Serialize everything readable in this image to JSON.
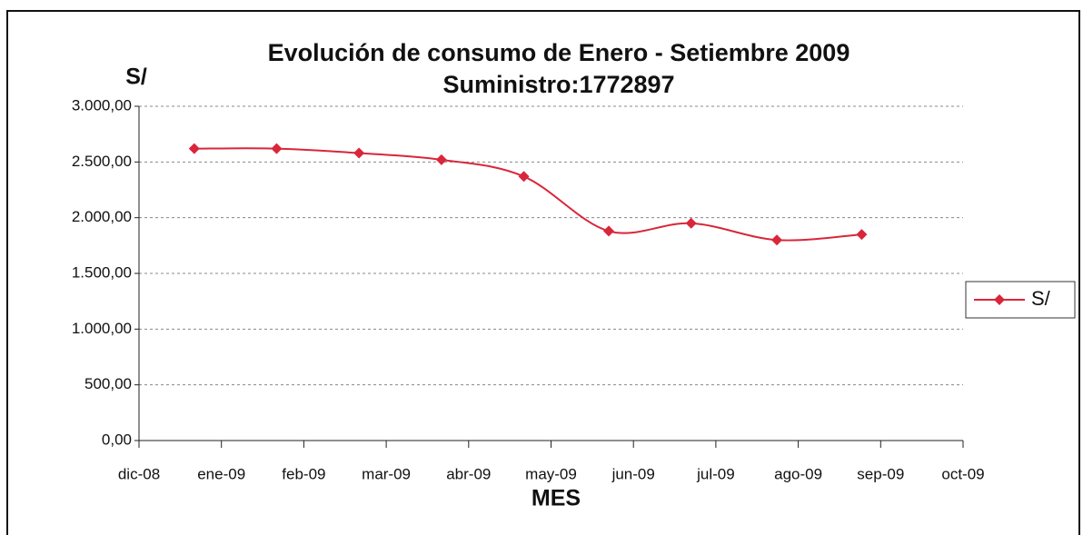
{
  "chart_data": {
    "type": "line",
    "title": "Evolución de consumo de Enero - Setiembre 2009",
    "subtitle": "Suministro:1772897",
    "y_label": "S/",
    "x_label": "MES",
    "x": [
      0.67,
      1.67,
      2.67,
      3.67,
      4.67,
      5.7,
      6.7,
      7.74,
      8.77
    ],
    "series": [
      {
        "name": "S/",
        "color": "#d9263a",
        "values": [
          2620,
          2620,
          2580,
          2520,
          2370,
          1880,
          1950,
          1800,
          1850
        ]
      }
    ],
    "xlim": [
      0,
      10
    ],
    "xticks": [
      {
        "value": 0,
        "label": "dic-08"
      },
      {
        "value": 1,
        "label": "ene-09"
      },
      {
        "value": 2,
        "label": "feb-09"
      },
      {
        "value": 3,
        "label": "mar-09"
      },
      {
        "value": 4,
        "label": "abr-09"
      },
      {
        "value": 5,
        "label": "may-09"
      },
      {
        "value": 6,
        "label": "jun-09"
      },
      {
        "value": 7,
        "label": "jul-09"
      },
      {
        "value": 8,
        "label": "ago-09"
      },
      {
        "value": 9,
        "label": "sep-09"
      },
      {
        "value": 10,
        "label": "oct-09"
      }
    ],
    "ylim": [
      0,
      3000
    ],
    "yticks": [
      {
        "value": 0,
        "label": "0,00"
      },
      {
        "value": 500,
        "label": "500,00"
      },
      {
        "value": 1000,
        "label": "1.000,00"
      },
      {
        "value": 1500,
        "label": "1.500,00"
      },
      {
        "value": 2000,
        "label": "2.000,00"
      },
      {
        "value": 2500,
        "label": "2.500,00"
      },
      {
        "value": 3000,
        "label": "3.000,00"
      }
    ],
    "grid": true,
    "legend": "right"
  }
}
